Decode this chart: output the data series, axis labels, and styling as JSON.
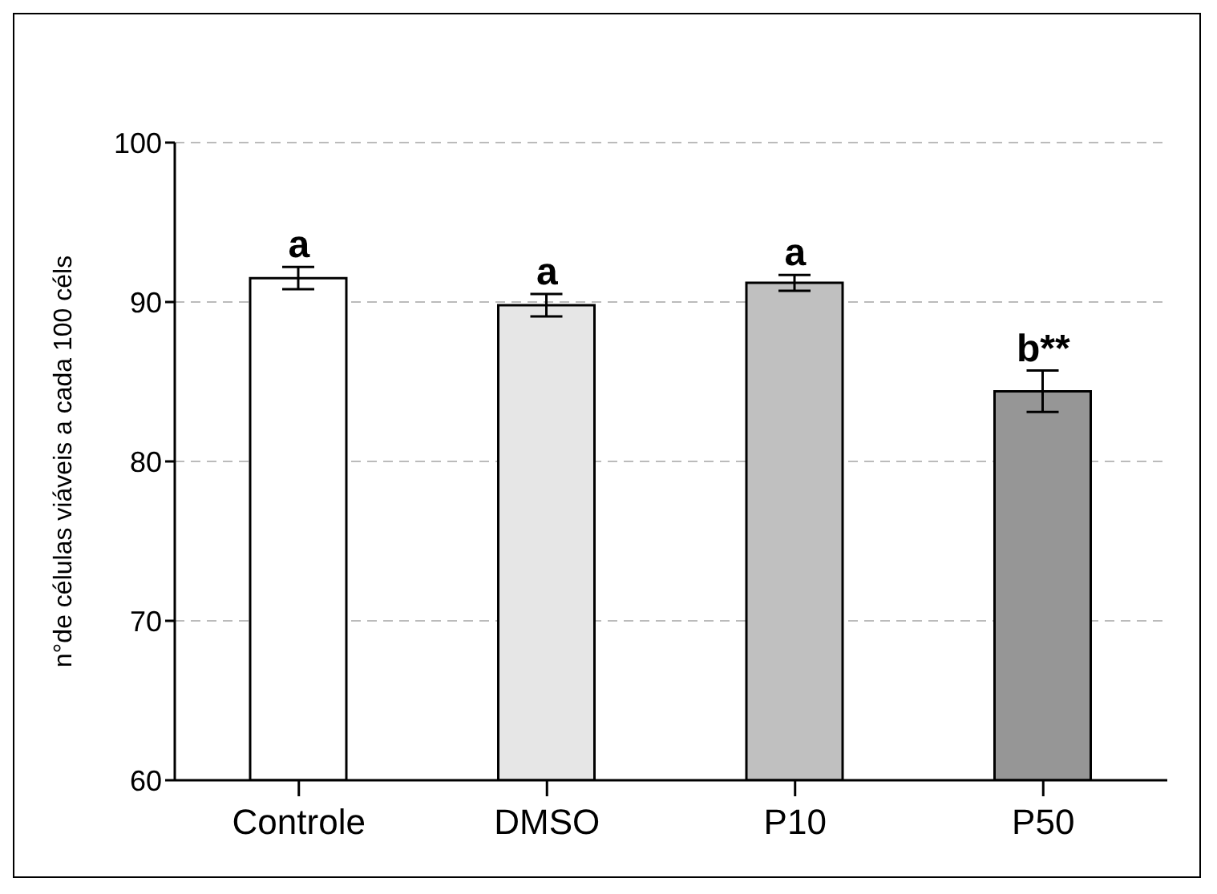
{
  "chart_data": {
    "type": "bar",
    "ylabel": "n°de células viáveis  a cada 100 céls",
    "categories": [
      "Controle",
      "DMSO",
      "P10",
      "P50"
    ],
    "values": [
      91.5,
      89.8,
      91.2,
      84.4
    ],
    "errors": [
      0.7,
      0.7,
      0.5,
      1.3
    ],
    "colors": [
      "#ffffff",
      "#e6e6e6",
      "#c0c0c0",
      "#969696"
    ],
    "ylim": [
      60,
      100
    ],
    "yticks": [
      60,
      70,
      80,
      90,
      100
    ],
    "grid": "y",
    "annotations": [
      {
        "text": "a",
        "x": "Controle",
        "y": 92.2
      },
      {
        "text": "a",
        "x": "DMSO",
        "y": 90.5
      },
      {
        "text": "a",
        "x": "P10",
        "y": 91.7
      },
      {
        "text": "b**",
        "x": "P50",
        "y": 85.7
      }
    ]
  }
}
